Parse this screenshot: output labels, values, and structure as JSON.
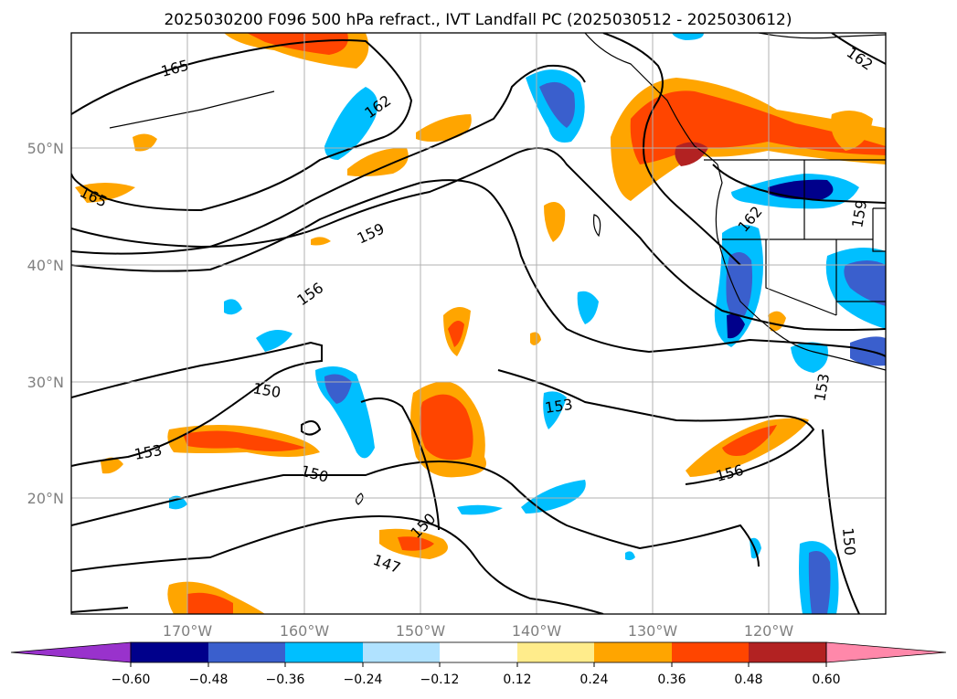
{
  "map": {
    "title": "2025030200 F096 500 hPa refract., IVT Landfall PC (2025030512 - 2025030612)",
    "longitude_labels": [
      "170°W",
      "160°W",
      "150°W",
      "140°W",
      "130°W",
      "120°W"
    ],
    "latitude_labels": [
      "50°N",
      "40°N",
      "30°N",
      "20°N"
    ],
    "contour_labels": [
      "165",
      "165",
      "162",
      "162",
      "162",
      "159",
      "159",
      "156",
      "156",
      "153",
      "153",
      "153",
      "150",
      "150",
      "150",
      "150",
      "147"
    ],
    "colorbar": {
      "tick_labels": [
        "−0.60",
        "−0.48",
        "−0.36",
        "−0.24",
        "−0.12",
        "0.12",
        "0.24",
        "0.36",
        "0.48",
        "0.60"
      ],
      "colors": [
        "#9932cc",
        "#00008b",
        "#3a5fcd",
        "#00bfff",
        "#b0e2ff",
        "#ffffff",
        "#ffec8b",
        "#ffa500",
        "#ff4500",
        "#b22222",
        "#ff88aa"
      ]
    }
  }
}
